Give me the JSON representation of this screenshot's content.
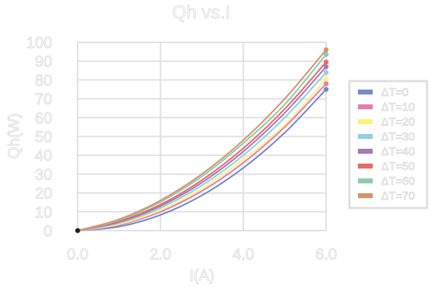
{
  "chart_data": {
    "type": "line",
    "title": "Qh vs.I",
    "xlabel": "I(A)",
    "ylabel": "Qh(W)",
    "xlim": [
      0,
      6
    ],
    "ylim": [
      0,
      100
    ],
    "xticks": [
      "0.0",
      "2.0",
      "4.0",
      "6.0"
    ],
    "xtick_values": [
      0,
      2,
      4,
      6
    ],
    "yticks": [
      "0",
      "10",
      "20",
      "30",
      "40",
      "50",
      "60",
      "70",
      "80",
      "90",
      "100"
    ],
    "ytick_values": [
      0,
      10,
      20,
      30,
      40,
      50,
      60,
      70,
      80,
      90,
      100
    ],
    "grid": true,
    "legend_placement": "right",
    "x": [
      0,
      1,
      2,
      3,
      4,
      5,
      6
    ],
    "series": [
      {
        "name": "ΔT=0",
        "color": "#7789c8",
        "values": [
          0,
          2.1,
          8.3,
          18.7,
          33.3,
          52,
          75
        ]
      },
      {
        "name": "ΔT=10",
        "color": "#e07fb0",
        "values": [
          0,
          3,
          10,
          21,
          36,
          55,
          78
        ]
      },
      {
        "name": "ΔT=20",
        "color": "#fff27a",
        "values": [
          0,
          3.4,
          10.8,
          22.3,
          37.7,
          56.1,
          80.5
        ]
      },
      {
        "name": "ΔT=30",
        "color": "#8fd1e0",
        "values": [
          0,
          4,
          12,
          24,
          40,
          60,
          84
        ]
      },
      {
        "name": "ΔT=40",
        "color": "#a878b8",
        "values": [
          0,
          4.5,
          13,
          25.5,
          42,
          62.5,
          87
        ]
      },
      {
        "name": "ΔT=50",
        "color": "#e86a6a",
        "values": [
          0,
          4.9,
          13.8,
          26.8,
          43.7,
          64.6,
          89.5
        ]
      },
      {
        "name": "ΔT=60",
        "color": "#8bcdb0",
        "values": [
          0,
          5.6,
          15.2,
          28.8,
          46.4,
          67,
          93.6
        ]
      },
      {
        "name": "ΔT=70",
        "color": "#d4956e",
        "values": [
          0,
          6,
          16,
          30,
          48,
          70,
          96
        ]
      }
    ]
  }
}
